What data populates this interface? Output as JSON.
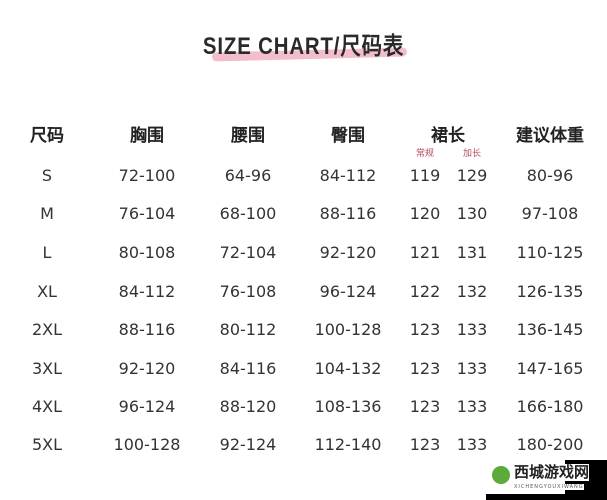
{
  "title": "SIZE CHART/尺码表",
  "headers": [
    "尺码",
    "胸围",
    "腰围",
    "臀围",
    "裙长",
    "建议体重"
  ],
  "skirt_sub": [
    "常规",
    "加长"
  ],
  "rows": [
    [
      "S",
      "72-100",
      "64-96",
      "84-112",
      "119",
      "129",
      "80-96"
    ],
    [
      "M",
      "76-104",
      "68-100",
      "88-116",
      "120",
      "130",
      "97-108"
    ],
    [
      "L",
      "80-108",
      "72-104",
      "92-120",
      "121",
      "131",
      "110-125"
    ],
    [
      "XL",
      "84-112",
      "76-108",
      "96-124",
      "122",
      "132",
      "126-135"
    ],
    [
      "2XL",
      "88-116",
      "80-112",
      "100-128",
      "123",
      "133",
      "136-145"
    ],
    [
      "3XL",
      "92-120",
      "84-116",
      "104-132",
      "123",
      "133",
      "147-165"
    ],
    [
      "4XL",
      "96-124",
      "88-120",
      "108-136",
      "123",
      "133",
      "166-180"
    ],
    [
      "5XL",
      "100-128",
      "92-124",
      "112-140",
      "123",
      "133",
      "180-200"
    ]
  ],
  "watermark": {
    "name": "西城游戏网",
    "pinyin": "XICHENGYOUXIWANG"
  }
}
